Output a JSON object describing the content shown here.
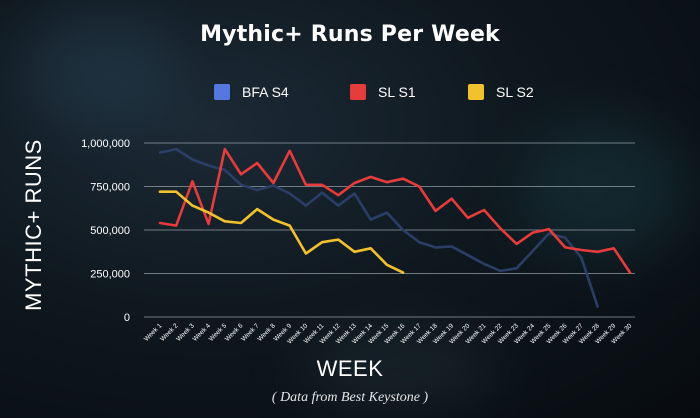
{
  "chart_data": {
    "type": "line",
    "title": "Mythic+ Runs Per Week",
    "xlabel": "WEEK",
    "ylabel": "MYTHIC+ RUNS",
    "source_note": "( Data from Best Keystone )",
    "y_ticks": [
      0,
      250000,
      500000,
      750000,
      1000000
    ],
    "y_tick_labels": [
      "0",
      "250,000",
      "500,000",
      "750,000",
      "1,000,000"
    ],
    "ylim": [
      0,
      1000000
    ],
    "grid": true,
    "legend_position": "top",
    "categories": [
      "Week 1",
      "Week 2",
      "Week 3",
      "Week 4",
      "Week 5",
      "Week 6",
      "Week 7",
      "Week 8",
      "Week 9",
      "Week 10",
      "Week 11",
      "Week 12",
      "Week 13",
      "Week 14",
      "Week 15",
      "Week 16",
      "Week 17",
      "Week 18",
      "Week 19",
      "Week 20",
      "Week 21",
      "Week 22",
      "Week 23",
      "Week 24",
      "Week 25",
      "Week 26",
      "Week 27",
      "Week 28",
      "Week 29",
      "Week 30"
    ],
    "series": [
      {
        "name": "BFA S4",
        "color": "#5577e0",
        "line_color": "#2b3f66",
        "values": [
          945000,
          965000,
          905000,
          870000,
          845000,
          760000,
          730000,
          755000,
          710000,
          640000,
          715000,
          640000,
          710000,
          560000,
          600000,
          500000,
          430000,
          400000,
          405000,
          355000,
          305000,
          265000,
          280000,
          380000,
          480000,
          455000,
          340000,
          60000,
          null,
          null
        ]
      },
      {
        "name": "SL S1",
        "color": "#e63c3c",
        "line_color": "#e63c3c",
        "values": [
          540000,
          525000,
          780000,
          535000,
          965000,
          820000,
          885000,
          770000,
          955000,
          760000,
          760000,
          700000,
          770000,
          805000,
          775000,
          795000,
          750000,
          610000,
          680000,
          570000,
          615000,
          510000,
          420000,
          485000,
          505000,
          400000,
          385000,
          375000,
          395000,
          255000
        ]
      },
      {
        "name": "SL S2",
        "color": "#f2c12e",
        "line_color": "#f2c12e",
        "values": [
          720000,
          720000,
          640000,
          600000,
          550000,
          540000,
          620000,
          560000,
          525000,
          365000,
          430000,
          445000,
          375000,
          395000,
          300000,
          255000,
          null,
          null,
          null,
          null,
          null,
          null,
          null,
          null,
          null,
          null,
          null,
          null,
          null,
          null
        ]
      }
    ]
  }
}
